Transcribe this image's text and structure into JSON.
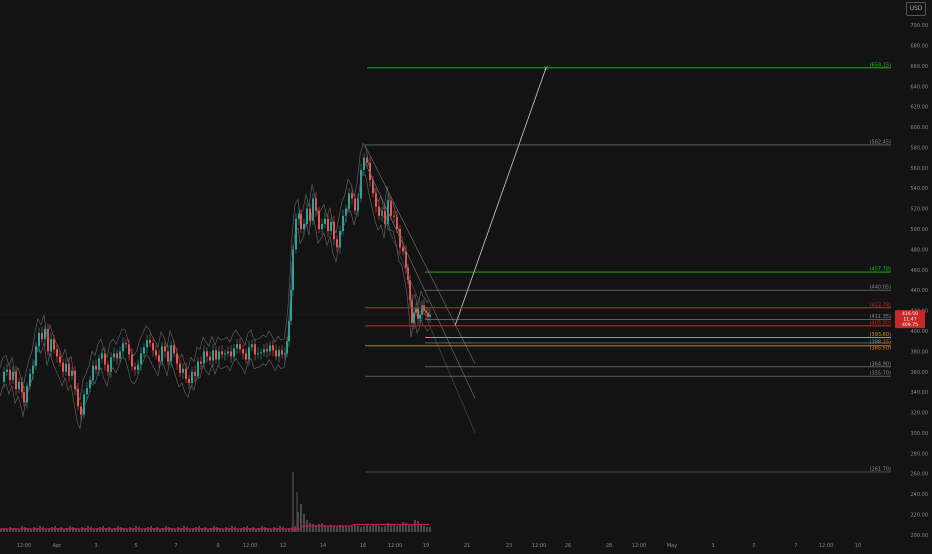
{
  "currency": "USD",
  "colors": {
    "background": "#131313",
    "up": "#26a69a",
    "down": "#ef5350",
    "axis_text": "#8a8a8a",
    "green_level": "#1fbf1f",
    "red_level": "#c62828",
    "orange_level": "#e08a1e",
    "gray_level": "#8a8a8a",
    "volume": "#4a4a4a",
    "volume_ma": "#c2185b",
    "price_tag": "#c62828"
  },
  "chart_data": {
    "type": "candlestick",
    "y_axis": {
      "ylim": [
        195,
        705
      ],
      "ticks": [
        "200.00",
        "220.00",
        "240.00",
        "260.00",
        "280.00",
        "300.00",
        "320.00",
        "340.00",
        "360.00",
        "380.00",
        "400.00",
        "420.00",
        "440.00",
        "460.00",
        "480.00",
        "500.00",
        "520.00",
        "540.00",
        "560.00",
        "580.00",
        "600.00",
        "620.00",
        "640.00",
        "660.00",
        "680.00",
        "700.00"
      ]
    },
    "x_axis": {
      "ticks": [
        "12:00",
        "Apr",
        "3",
        "5",
        "7",
        "9",
        "12:00",
        "12",
        "14",
        "16",
        "12:00",
        "19",
        "21",
        "23",
        "12:00",
        "26",
        "28",
        "12:00",
        "May",
        "3",
        "5",
        "7",
        "12:00",
        "10"
      ]
    },
    "last_price_tag": [
      "416.50",
      "11:47",
      "409.75"
    ],
    "levels": [
      {
        "label": "(658.15)",
        "value": 658.15,
        "color": "green"
      },
      {
        "label": "(582.45)",
        "value": 582.45,
        "color": "gray"
      },
      {
        "label": "(457.78)",
        "value": 457.78,
        "color": "green"
      },
      {
        "label": "(440.05)",
        "value": 440.05,
        "color": "gray"
      },
      {
        "label": "(422.78)",
        "value": 422.78,
        "color": "red"
      },
      {
        "label": "(411.35)",
        "value": 411.35,
        "color": "gray"
      },
      {
        "label": "(405.00)",
        "value": 405.0,
        "color": "red"
      },
      {
        "label": "(393.60)",
        "value": 393.6,
        "color": "orange"
      },
      {
        "label": "(388.25)",
        "value": 388.25,
        "color": "gray"
      },
      {
        "label": "(385.50)",
        "value": 385.5,
        "color": "orange"
      },
      {
        "label": "(364.90)",
        "value": 364.9,
        "color": "gray"
      },
      {
        "label": "(355.70)",
        "value": 355.7,
        "color": "gray"
      },
      {
        "label": "(261.70)",
        "value": 261.7,
        "color": "gray"
      }
    ],
    "price_path": [
      [
        0,
        350
      ],
      [
        3,
        360
      ],
      [
        6,
        362
      ],
      [
        9,
        352
      ],
      [
        12,
        360
      ],
      [
        15,
        343
      ],
      [
        18,
        350
      ],
      [
        21,
        340
      ],
      [
        23,
        330
      ],
      [
        26,
        346
      ],
      [
        29,
        358
      ],
      [
        32,
        366
      ],
      [
        35,
        385
      ],
      [
        38,
        398
      ],
      [
        41,
        392
      ],
      [
        44,
        402
      ],
      [
        47,
        380
      ],
      [
        50,
        392
      ],
      [
        53,
        382
      ],
      [
        56,
        375
      ],
      [
        59,
        369
      ],
      [
        62,
        360
      ],
      [
        65,
        368
      ],
      [
        68,
        356
      ],
      [
        71,
        361
      ],
      [
        74,
        343
      ],
      [
        77,
        326
      ],
      [
        80,
        318
      ],
      [
        83,
        338
      ],
      [
        86,
        344
      ],
      [
        89,
        352
      ],
      [
        92,
        366
      ],
      [
        95,
        362
      ],
      [
        98,
        373
      ],
      [
        101,
        378
      ],
      [
        104,
        367
      ],
      [
        107,
        360
      ],
      [
        110,
        374
      ],
      [
        113,
        378
      ],
      [
        116,
        373
      ],
      [
        119,
        380
      ],
      [
        122,
        388
      ],
      [
        125,
        387
      ],
      [
        128,
        377
      ],
      [
        131,
        365
      ],
      [
        134,
        362
      ],
      [
        137,
        367
      ],
      [
        140,
        378
      ],
      [
        143,
        384
      ],
      [
        146,
        391
      ],
      [
        149,
        388
      ],
      [
        152,
        381
      ],
      [
        155,
        376
      ],
      [
        158,
        370
      ],
      [
        161,
        385
      ],
      [
        164,
        380
      ],
      [
        167,
        370
      ],
      [
        170,
        386
      ],
      [
        173,
        378
      ],
      [
        176,
        368
      ],
      [
        179,
        359
      ],
      [
        182,
        363
      ],
      [
        185,
        353
      ],
      [
        188,
        349
      ],
      [
        191,
        360
      ],
      [
        194,
        356
      ],
      [
        197,
        370
      ],
      [
        200,
        368
      ],
      [
        203,
        380
      ],
      [
        206,
        375
      ],
      [
        209,
        371
      ],
      [
        212,
        381
      ],
      [
        215,
        372
      ],
      [
        218,
        380
      ],
      [
        221,
        377
      ],
      [
        224,
        378
      ],
      [
        227,
        380
      ],
      [
        230,
        375
      ],
      [
        233,
        383
      ],
      [
        236,
        387
      ],
      [
        239,
        382
      ],
      [
        242,
        378
      ],
      [
        245,
        372
      ],
      [
        248,
        384
      ],
      [
        251,
        387
      ],
      [
        254,
        377
      ],
      [
        257,
        378
      ],
      [
        260,
        379
      ],
      [
        263,
        382
      ],
      [
        266,
        380
      ],
      [
        269,
        386
      ],
      [
        272,
        381
      ],
      [
        275,
        375
      ],
      [
        278,
        381
      ],
      [
        281,
        377
      ],
      [
        284,
        378
      ],
      [
        286,
        390
      ],
      [
        288,
        410
      ],
      [
        290,
        440
      ],
      [
        292,
        480
      ],
      [
        295,
        510
      ],
      [
        298,
        515
      ],
      [
        300,
        500
      ],
      [
        303,
        505
      ],
      [
        306,
        520
      ],
      [
        309,
        508
      ],
      [
        312,
        530
      ],
      [
        315,
        518
      ],
      [
        318,
        500
      ],
      [
        321,
        505
      ],
      [
        324,
        510
      ],
      [
        327,
        498
      ],
      [
        330,
        507
      ],
      [
        333,
        490
      ],
      [
        336,
        482
      ],
      [
        339,
        498
      ],
      [
        342,
        513
      ],
      [
        345,
        520
      ],
      [
        348,
        535
      ],
      [
        351,
        530
      ],
      [
        354,
        518
      ],
      [
        357,
        530
      ],
      [
        360,
        558
      ],
      [
        363,
        570
      ],
      [
        366,
        565
      ],
      [
        369,
        548
      ],
      [
        372,
        535
      ],
      [
        375,
        522
      ],
      [
        378,
        513
      ],
      [
        381,
        518
      ],
      [
        384,
        505
      ],
      [
        387,
        528
      ],
      [
        390,
        513
      ],
      [
        393,
        512
      ],
      [
        396,
        500
      ],
      [
        399,
        482
      ],
      [
        402,
        478
      ],
      [
        405,
        462
      ],
      [
        407,
        450
      ],
      [
        409,
        430
      ],
      [
        411,
        408
      ],
      [
        413,
        418
      ],
      [
        415,
        422
      ],
      [
        417,
        412
      ],
      [
        419,
        416
      ],
      [
        421,
        425
      ],
      [
        423,
        420
      ],
      [
        425,
        418
      ],
      [
        427,
        414
      ],
      [
        429,
        416
      ]
    ],
    "volume": [
      3,
      4,
      3,
      5,
      4,
      4,
      3,
      6,
      5,
      4,
      3,
      5,
      4,
      6,
      5,
      3,
      4,
      5,
      6,
      4,
      5,
      3,
      4,
      6,
      5,
      4,
      3,
      5,
      4,
      6,
      5,
      3,
      4,
      5,
      6,
      4,
      5,
      3,
      4,
      6,
      5,
      4,
      3,
      5,
      4,
      6,
      5,
      3,
      4,
      5,
      6,
      4,
      5,
      3,
      4,
      6,
      5,
      4,
      3,
      5,
      4,
      6,
      5,
      3,
      4,
      5,
      6,
      4,
      5,
      3,
      4,
      6,
      5,
      4,
      3,
      5,
      4,
      6,
      5,
      3,
      4,
      5,
      6,
      4,
      5,
      3,
      4,
      6,
      5,
      4,
      3,
      5,
      4,
      6,
      5,
      3,
      4,
      5,
      6,
      20,
      28,
      18,
      12,
      9,
      8,
      7,
      8,
      9,
      7,
      6,
      7,
      6,
      5,
      7,
      6,
      6,
      5,
      6,
      7,
      6,
      5,
      6,
      7,
      6,
      8,
      7,
      6,
      5,
      6,
      9,
      7,
      8,
      6,
      7,
      10,
      9,
      8,
      7,
      12,
      11,
      8,
      6,
      5,
      5
    ]
  }
}
